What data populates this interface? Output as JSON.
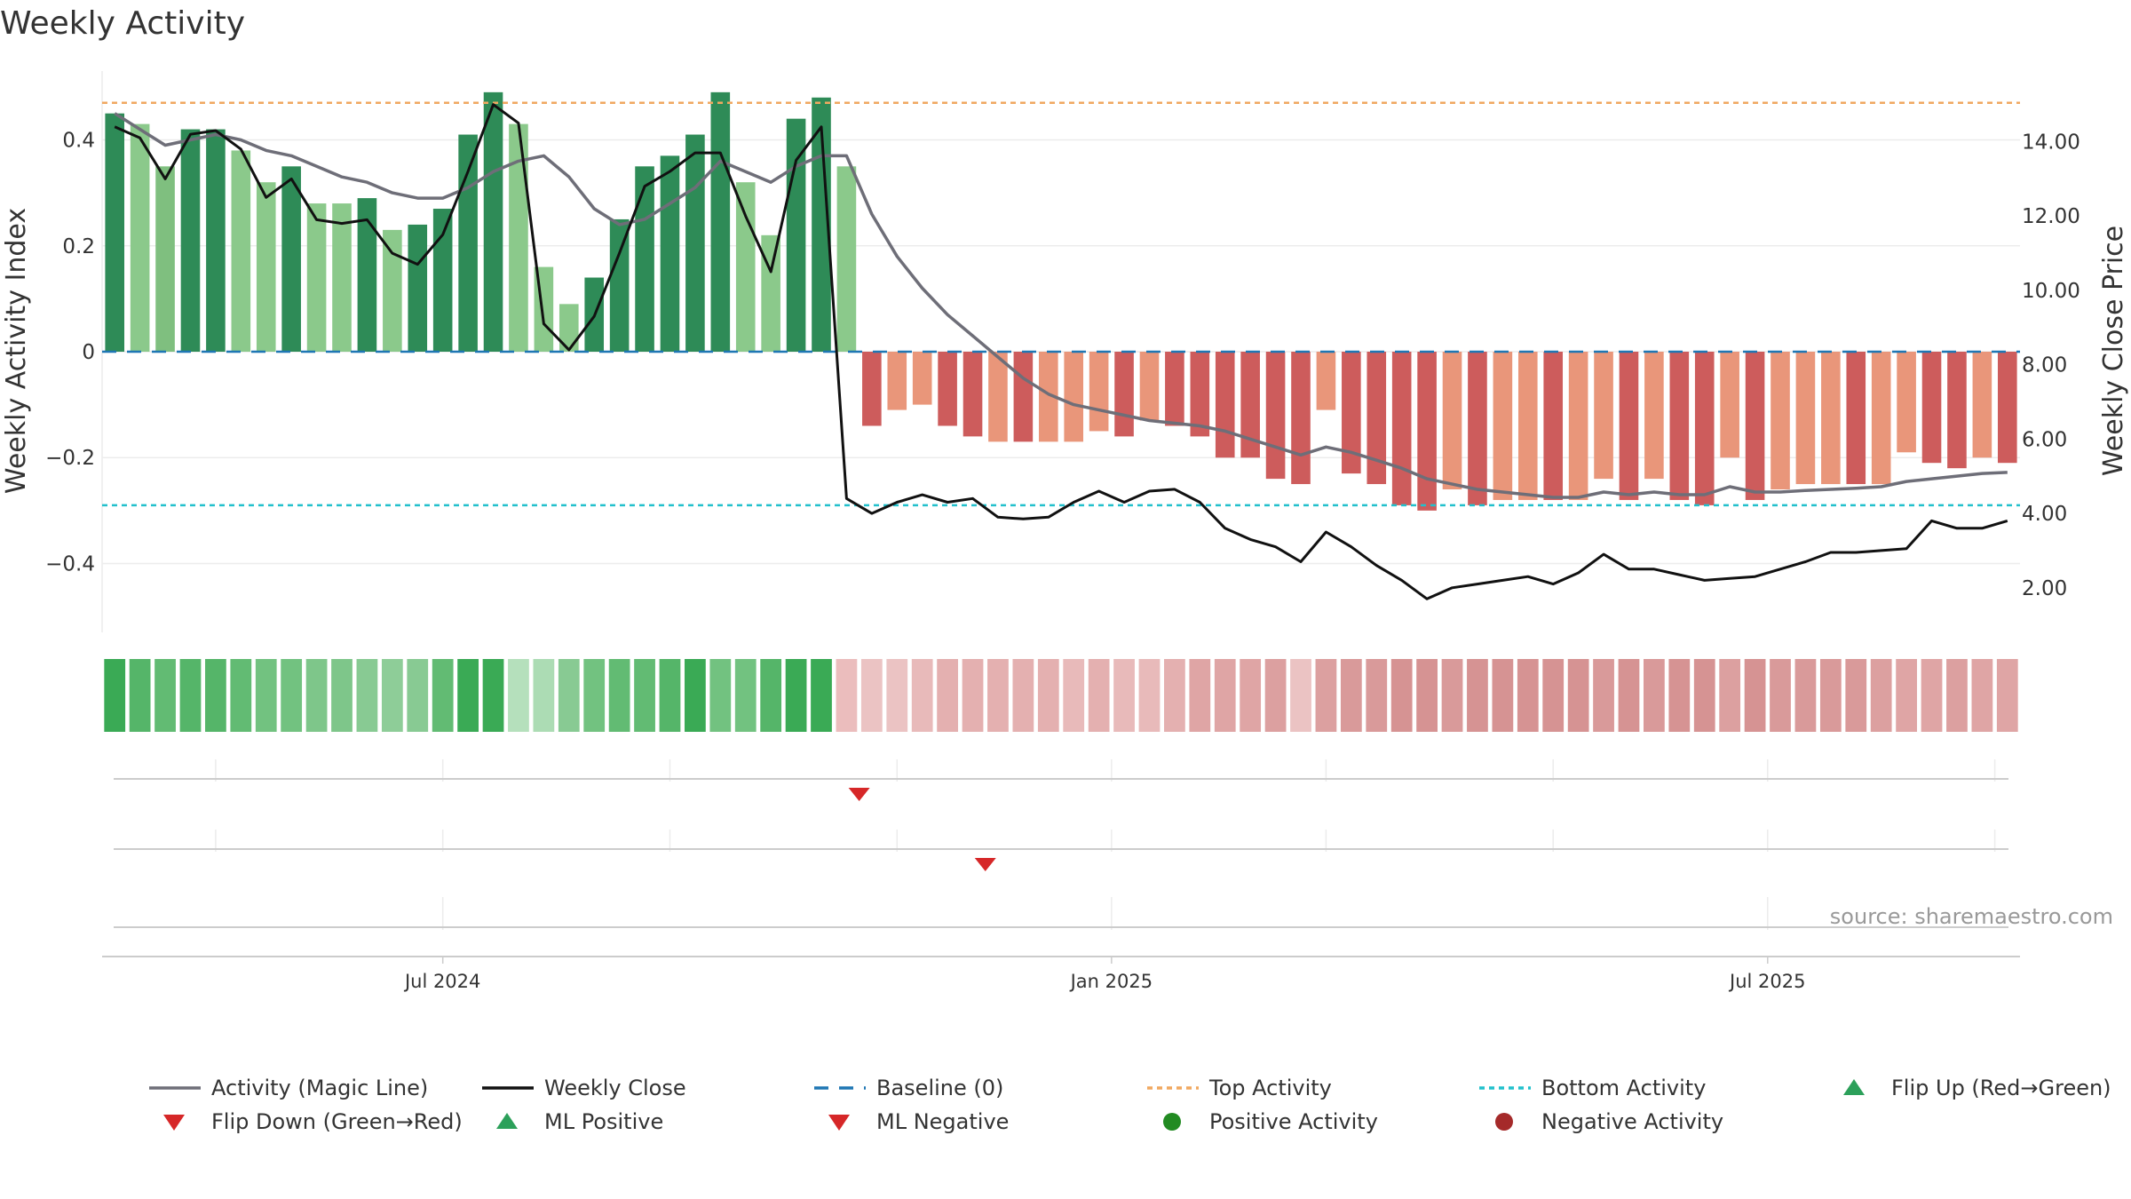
{
  "chart_data": {
    "type": "bar",
    "title": "Weekly Activity",
    "ylabel_left": "Weekly Activity Index",
    "ylabel_right": "Weekly Close Price",
    "ylim_left": [
      -0.53,
      0.53
    ],
    "ylim_right": [
      0.8,
      15.9
    ],
    "left_ticks": [
      {
        "value": 0.4,
        "label": "0.4"
      },
      {
        "value": 0.2,
        "label": "0.2"
      },
      {
        "value": 0,
        "label": "0"
      },
      {
        "value": -0.2,
        "label": "−0.2"
      },
      {
        "value": -0.4,
        "label": "−0.4"
      }
    ],
    "right_ticks": [
      {
        "value": 14,
        "label": "14.00"
      },
      {
        "value": 12,
        "label": "12.00"
      },
      {
        "value": 10,
        "label": "10.00"
      },
      {
        "value": 8,
        "label": "8.00"
      },
      {
        "value": 6,
        "label": "6.00"
      },
      {
        "value": 4,
        "label": "4.00"
      },
      {
        "value": 2,
        "label": "2.00"
      }
    ],
    "x_ticks": [
      {
        "week": 13.5,
        "label": "Jul 2024"
      },
      {
        "week": 40,
        "label": "Jan 2025"
      },
      {
        "week": 66,
        "label": "Jul 2025"
      }
    ],
    "top_activity": 0.47,
    "bottom_activity": -0.29,
    "baseline": 0,
    "activity": [
      0.45,
      0.43,
      0.35,
      0.42,
      0.42,
      0.38,
      0.32,
      0.35,
      0.28,
      0.28,
      0.29,
      0.23,
      0.24,
      0.27,
      0.41,
      0.49,
      0.43,
      0.16,
      0.09,
      0.14,
      0.25,
      0.35,
      0.37,
      0.41,
      0.49,
      0.32,
      0.22,
      0.44,
      0.48,
      0.35,
      -0.14,
      -0.11,
      -0.1,
      -0.14,
      -0.16,
      -0.17,
      -0.17,
      -0.17,
      -0.17,
      -0.15,
      -0.16,
      -0.13,
      -0.14,
      -0.16,
      -0.2,
      -0.2,
      -0.24,
      -0.25,
      -0.11,
      -0.23,
      -0.25,
      -0.29,
      -0.3,
      -0.26,
      -0.29,
      -0.28,
      -0.28,
      -0.28,
      -0.28,
      -0.24,
      -0.28,
      -0.24,
      -0.28,
      -0.29,
      -0.2,
      -0.28,
      -0.26,
      -0.25,
      -0.25,
      -0.25,
      -0.25,
      -0.19,
      -0.21,
      -0.22,
      -0.2,
      -0.21
    ],
    "bar_colors": [
      "#2e8b57",
      "#8bc98b",
      "#7fbf7f",
      "#2e8b57",
      "#2e8b57",
      "#8bc98b",
      "#8bc98b",
      "#2e8b57",
      "#8bc98b",
      "#8bc98b",
      "#2e8b57",
      "#8bc98b",
      "#2e8b57",
      "#2e8b57",
      "#2e8b57",
      "#2e8b57",
      "#8bc98b",
      "#8bc98b",
      "#8bc98b",
      "#2e8b57",
      "#2e8b57",
      "#2e8b57",
      "#2e8b57",
      "#2e8b57",
      "#2e8b57",
      "#8bc98b",
      "#8bc98b",
      "#2e8b57",
      "#2e8b57",
      "#8bc98b",
      "#cd5c5c",
      "#e9967a",
      "#e9967a",
      "#cd5c5c",
      "#cd5c5c",
      "#e9967a",
      "#cd5c5c",
      "#e9967a",
      "#e9967a",
      "#e9967a",
      "#cd5c5c",
      "#e9967a",
      "#cd5c5c",
      "#cd5c5c",
      "#cd5c5c",
      "#cd5c5c",
      "#cd5c5c",
      "#cd5c5c",
      "#e9967a",
      "#cd5c5c",
      "#cd5c5c",
      "#cd5c5c",
      "#cd5c5c",
      "#e9967a",
      "#cd5c5c",
      "#e9967a",
      "#e9967a",
      "#cd5c5c",
      "#e9967a",
      "#e9967a",
      "#cd5c5c",
      "#e9967a",
      "#cd5c5c",
      "#cd5c5c",
      "#e9967a",
      "#cd5c5c",
      "#e9967a",
      "#e9967a",
      "#e9967a",
      "#cd5c5c",
      "#e9967a",
      "#e9967a",
      "#cd5c5c",
      "#cd5c5c",
      "#e9967a",
      "#cd5c5c"
    ],
    "strip_colors": [
      "#3aaa55",
      "#55b569",
      "#62bb73",
      "#55b569",
      "#55b569",
      "#62bb73",
      "#72c280",
      "#72c280",
      "#7ec68a",
      "#7ec68a",
      "#88ca93",
      "#8ecd98",
      "#88ca93",
      "#62bb73",
      "#3aaa55",
      "#3aaa55",
      "#b5e0bc",
      "#acdcb4",
      "#88ca93",
      "#72c280",
      "#62bb73",
      "#62bb73",
      "#55b569",
      "#3aaa55",
      "#72c280",
      "#72c280",
      "#55b569",
      "#3aaa55",
      "#3aaa55",
      "#ebbdbd",
      "#ebc3c3",
      "#ebc3c3",
      "#e8baba",
      "#e4b0b0",
      "#e4b0b0",
      "#e4b0b0",
      "#e4b0b0",
      "#e4b0b0",
      "#e8baba",
      "#e4b0b0",
      "#e8baba",
      "#e8baba",
      "#e4b0b0",
      "#dfa5a5",
      "#dfa5a5",
      "#dfa5a5",
      "#dca0a0",
      "#ebc3c3",
      "#dca0a0",
      "#d99a9a",
      "#d99a9a",
      "#d69393",
      "#d69393",
      "#d99a9a",
      "#d69393",
      "#d69393",
      "#d69393",
      "#d69393",
      "#d69393",
      "#d99a9a",
      "#d69393",
      "#d99a9a",
      "#d69393",
      "#d69393",
      "#dca0a0",
      "#d69393",
      "#d99a9a",
      "#d99a9a",
      "#d99a9a",
      "#d99a9a",
      "#dca0a0",
      "#dfa5a5",
      "#dfa5a5",
      "#dca0a0",
      "#dfa5a5",
      "#dfa5a5"
    ],
    "magic_line": [
      0.45,
      0.42,
      0.39,
      0.4,
      0.41,
      0.4,
      0.38,
      0.37,
      0.35,
      0.33,
      0.32,
      0.3,
      0.29,
      0.29,
      0.31,
      0.34,
      0.36,
      0.37,
      0.33,
      0.27,
      0.24,
      0.25,
      0.28,
      0.31,
      0.36,
      0.34,
      0.32,
      0.35,
      0.37,
      0.37,
      0.26,
      0.18,
      0.12,
      0.07,
      0.03,
      -0.01,
      -0.05,
      -0.08,
      -0.1,
      -0.11,
      -0.12,
      -0.13,
      -0.135,
      -0.14,
      -0.15,
      -0.165,
      -0.18,
      -0.195,
      -0.18,
      -0.19,
      -0.205,
      -0.22,
      -0.24,
      -0.25,
      -0.26,
      -0.265,
      -0.27,
      -0.275,
      -0.275,
      -0.265,
      -0.27,
      -0.265,
      -0.27,
      -0.27,
      -0.255,
      -0.265,
      -0.265,
      -0.262,
      -0.26,
      -0.258,
      -0.255,
      -0.245,
      -0.24,
      -0.235,
      -0.23,
      -0.228
    ],
    "weekly_close": [
      14.4,
      14.1,
      13.0,
      14.2,
      14.3,
      13.8,
      12.5,
      13.0,
      11.9,
      11.8,
      11.9,
      11.0,
      10.7,
      11.5,
      13.2,
      15.0,
      14.5,
      9.1,
      8.4,
      9.3,
      11.0,
      12.8,
      13.2,
      13.7,
      13.7,
      12.0,
      10.5,
      13.5,
      14.4,
      4.4,
      4.0,
      4.3,
      4.5,
      4.3,
      4.4,
      3.9,
      3.85,
      3.9,
      4.3,
      4.6,
      4.3,
      4.6,
      4.65,
      4.3,
      3.6,
      3.3,
      3.1,
      2.7,
      3.5,
      3.1,
      2.6,
      2.2,
      1.7,
      2.0,
      2.1,
      2.2,
      2.3,
      2.1,
      2.4,
      2.9,
      2.5,
      2.5,
      2.35,
      2.2,
      2.25,
      2.3,
      2.5,
      2.7,
      2.95,
      2.95,
      3.0,
      3.05,
      3.8,
      3.6,
      3.6,
      3.8
    ],
    "flip_markers": [
      {
        "week": 30,
        "row": 1,
        "label": "Flip Down (Green→Red)"
      },
      {
        "week": 35,
        "row": 2,
        "label": "ML Negative"
      }
    ],
    "legend": [
      "Activity (Magic Line)",
      "Weekly Close",
      "Baseline (0)",
      "Top Activity",
      "Bottom Activity",
      "Flip Up (Red→Green)",
      "Flip Down (Green→Red)",
      "ML Positive",
      "ML Negative",
      "Positive Activity",
      "Negative Activity"
    ],
    "source": "source: sharemaestro.com"
  },
  "colors": {
    "magic_line": "#6e6e78",
    "weekly_close": "#111111",
    "baseline": "#1f77b4",
    "top_activity": "#f0a860",
    "bottom_activity": "#22c0cc",
    "flip_up": "#2ca05a",
    "flip_down": "#d62728",
    "ml_positive": "#2ca05a",
    "ml_negative": "#d62728",
    "positive_activity": "#228b22",
    "negative_activity": "#a52a2a",
    "grid": "#ececec",
    "axis": "#cccccc"
  }
}
